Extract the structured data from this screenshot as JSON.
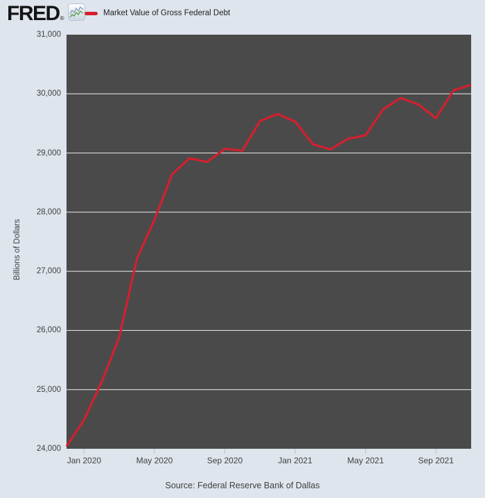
{
  "header": {
    "logo_text": "FRED",
    "logo_reg": "®"
  },
  "legend": {
    "label": "Market Value of Gross Federal Debt"
  },
  "footer": {
    "source": "Source: Federal Reserve Bank of Dallas"
  },
  "colors": {
    "line": "#d2202f",
    "plot_background": "#4a4a4a",
    "page_background": "#dee5ed",
    "gridline": "#efefef",
    "tick_mark": "#b3bfc9",
    "axis_text": "#404040",
    "logo_sparkline_green": "#5a9e46",
    "logo_sparkline_blue": "#8aa2b8"
  },
  "chart_data": {
    "type": "line",
    "title": "Market Value of Gross Federal Debt",
    "xlabel": "",
    "ylabel": "Billions of Dollars",
    "ylim": [
      24000,
      31000
    ],
    "y_ticks": [
      24000,
      25000,
      26000,
      27000,
      28000,
      29000,
      30000,
      31000
    ],
    "grid": "horizontal",
    "legend_position": "top-left",
    "categories": [
      "Dec 2019",
      "Jan 2020",
      "Feb 2020",
      "Mar 2020",
      "Apr 2020",
      "May 2020",
      "Jun 2020",
      "Jul 2020",
      "Aug 2020",
      "Sep 2020",
      "Oct 2020",
      "Nov 2020",
      "Dec 2020",
      "Jan 2021",
      "Feb 2021",
      "Mar 2021",
      "Apr 2021",
      "May 2021",
      "Jun 2021",
      "Jul 2021",
      "Aug 2021",
      "Sep 2021",
      "Oct 2021",
      "Nov 2021"
    ],
    "values": [
      24040,
      24490,
      25130,
      25890,
      27210,
      27870,
      28640,
      28910,
      28850,
      29070,
      29040,
      29540,
      29660,
      29530,
      29150,
      29060,
      29240,
      29300,
      29740,
      29930,
      29820,
      29590,
      30060,
      30150
    ],
    "x_tick_labels": [
      "Jan 2020",
      "May 2020",
      "Sep 2020",
      "Jan 2021",
      "May 2021",
      "Sep 2021"
    ],
    "x_tick_indices": [
      1,
      5,
      9,
      13,
      17,
      21
    ]
  }
}
